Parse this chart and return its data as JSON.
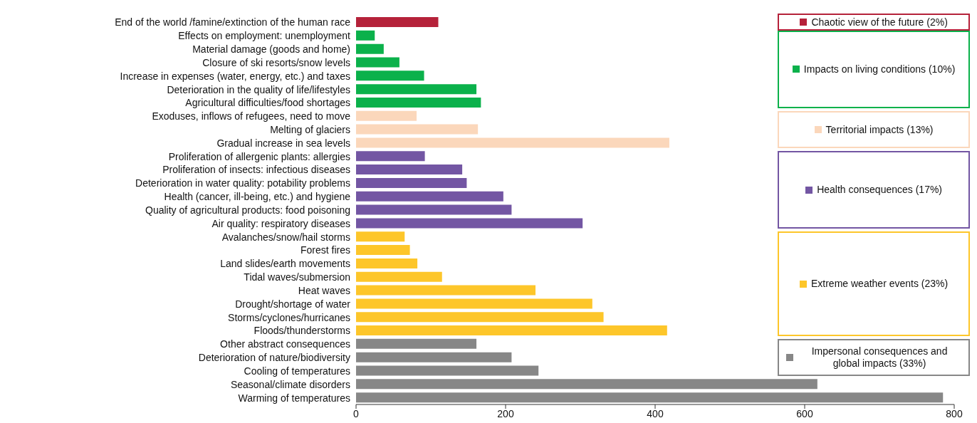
{
  "chart_data": {
    "type": "bar",
    "orientation": "horizontal",
    "stacked": true,
    "categories": [
      "End of the world /famine/extinction of the human race",
      "Effects on employment: unemployment",
      "Material damage (goods and home)",
      "Closure of ski resorts/snow levels",
      "Increase in expenses (water, energy, etc.) and taxes",
      "Deterioration in the quality of life/lifestyles",
      "Agricultural difficulties/food shortages",
      "Exoduses, inflows of refugees, need to move",
      "Melting of glaciers",
      "Gradual increase in sea levels",
      "Proliferation of allergenic plants: allergies",
      "Proliferation of insects: infectious diseases",
      "Deterioration in water quality: potability problems",
      "Health (cancer, ill-being, etc.) and hygiene",
      "Quality of agricultural products: food poisoning",
      "Air quality: respiratory diseases",
      "Avalanches/snow/hail storms",
      "Forest fires",
      "Land slides/earth movements",
      "Tidal waves/submersion",
      "Heat waves",
      "Drought/shortage of water",
      "Storms/cyclones/hurricanes",
      "Floods/thunderstorms",
      "Other abstract consequences",
      "Deterioration of nature/biodiversity",
      "Cooling of temperatures",
      "Seasonal/climate disorders",
      "Warming of temperatures"
    ],
    "series": [
      {
        "name": "Chaotic view of the future (2%)",
        "color": "#b5223a",
        "values": [
          110,
          null,
          null,
          null,
          null,
          null,
          null,
          null,
          null,
          null,
          null,
          null,
          null,
          null,
          null,
          null,
          null,
          null,
          null,
          null,
          null,
          null,
          null,
          null,
          null,
          null,
          null,
          null,
          null
        ]
      },
      {
        "name": "Impacts on living conditions (10%)",
        "color": "#0bb14b",
        "values": [
          null,
          25,
          37,
          58,
          91,
          161,
          167,
          null,
          null,
          null,
          null,
          null,
          null,
          null,
          null,
          null,
          null,
          null,
          null,
          null,
          null,
          null,
          null,
          null,
          null,
          null,
          null,
          null,
          null
        ]
      },
      {
        "name": "Territorial impacts (13%)",
        "color": "#fbd7bb",
        "values": [
          null,
          null,
          null,
          null,
          null,
          null,
          null,
          81,
          163,
          419,
          null,
          null,
          null,
          null,
          null,
          null,
          null,
          null,
          null,
          null,
          null,
          null,
          null,
          null,
          null,
          null,
          null,
          null,
          null
        ]
      },
      {
        "name": "Health consequences (17%)",
        "color": "#7356a3",
        "values": [
          null,
          null,
          null,
          null,
          null,
          null,
          null,
          null,
          null,
          null,
          92,
          142,
          148,
          197,
          208,
          303,
          null,
          null,
          null,
          null,
          null,
          null,
          null,
          null,
          null,
          null,
          null,
          null,
          null
        ]
      },
      {
        "name": "Extreme weather events (23%)",
        "color": "#fdc62a",
        "values": [
          null,
          null,
          null,
          null,
          null,
          null,
          null,
          null,
          null,
          null,
          null,
          null,
          null,
          null,
          null,
          null,
          65,
          72,
          82,
          115,
          240,
          316,
          331,
          416,
          null,
          null,
          null,
          null,
          null
        ]
      },
      {
        "name": "Impersonal consequences and global impacts (33%)",
        "color": "#878787",
        "values": [
          null,
          null,
          null,
          null,
          null,
          null,
          null,
          null,
          null,
          null,
          null,
          null,
          null,
          null,
          null,
          null,
          null,
          null,
          null,
          null,
          null,
          null,
          null,
          null,
          161,
          208,
          244,
          617,
          785
        ]
      }
    ],
    "legend": "right",
    "xlim": [
      0,
      800
    ],
    "xticks": [
      0,
      200,
      400,
      600,
      800
    ]
  }
}
